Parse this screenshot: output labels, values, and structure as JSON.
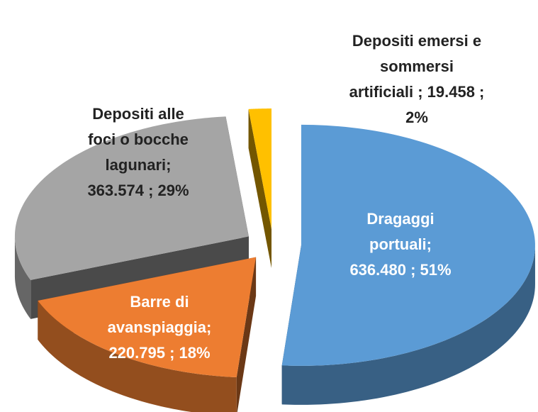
{
  "chart_data": {
    "type": "pie",
    "categories": [
      "Dragaggi portuali",
      "Barre di avanspiaggia",
      "Depositi alle foci o bocche lagunari",
      "Depositi emersi e sommersi artificiali"
    ],
    "values": [
      636480,
      220795,
      363574,
      19458
    ],
    "value_labels": [
      "Dragaggi portuali; 636.480 ; 51%",
      "Barre  di avanspiaggia;  220.795 ; 18%",
      "Depositi alle foci o bocche lagunari; 363.574 ; 29%",
      "Depositi emersi e sommersi artificiali  ; 19.458 ; 2%"
    ],
    "colors": [
      "#5b9bd5",
      "#ed7d31",
      "#a5a5a5",
      "#ffc000"
    ]
  }
}
